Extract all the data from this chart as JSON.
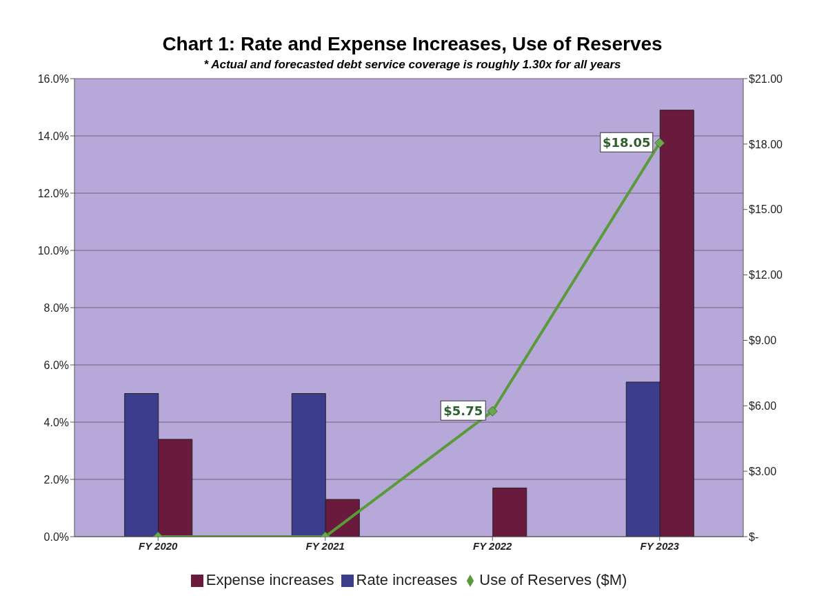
{
  "chart_data": {
    "type": "bar",
    "title": "Chart 1: Rate and Expense Increases, Use of Reserves",
    "subtitle": "* Actual and forecasted debt service coverage is roughly 1.30x for all years",
    "categories": [
      "FY 2020",
      "FY 2021",
      "FY 2022",
      "FY 2023"
    ],
    "series": [
      {
        "name": "Rate increases",
        "color": "#3c3c8c",
        "values": [
          5.0,
          5.0,
          0,
          5.4
        ]
      },
      {
        "name": "Expense increases",
        "color": "#6a1a3c",
        "values": [
          3.4,
          1.3,
          1.7,
          14.9
        ]
      },
      {
        "name": "Use of Reserves ($M)",
        "type": "line",
        "axis": "y2",
        "color": "#5a9a3a",
        "values": [
          0,
          0,
          5.75,
          18.05
        ],
        "value_labels": [
          null,
          null,
          "$5.75",
          "$18.05"
        ]
      }
    ],
    "ylim": [
      0,
      16
    ],
    "yticks": [
      {
        "value": 0,
        "label": "0.0%"
      },
      {
        "value": 2,
        "label": "2.0%"
      },
      {
        "value": 4,
        "label": "4.0%"
      },
      {
        "value": 6,
        "label": "6.0%"
      },
      {
        "value": 8,
        "label": "8.0%"
      },
      {
        "value": 10,
        "label": "10.0%"
      },
      {
        "value": 12,
        "label": "12.0%"
      },
      {
        "value": 14,
        "label": "14.0%"
      },
      {
        "value": 16,
        "label": "16.0%"
      }
    ],
    "y2lim": [
      0,
      21
    ],
    "y2ticks": [
      {
        "value": 0,
        "label": "$-"
      },
      {
        "value": 3,
        "label": "$3.00"
      },
      {
        "value": 6,
        "label": "$6.00"
      },
      {
        "value": 9,
        "label": "$9.00"
      },
      {
        "value": 12,
        "label": "$12.00"
      },
      {
        "value": 15,
        "label": "$15.00"
      },
      {
        "value": 18,
        "label": "$18.00"
      },
      {
        "value": 21,
        "label": "$21.00"
      }
    ],
    "grid": "y",
    "legend": "bottom",
    "marker": "diamond"
  }
}
